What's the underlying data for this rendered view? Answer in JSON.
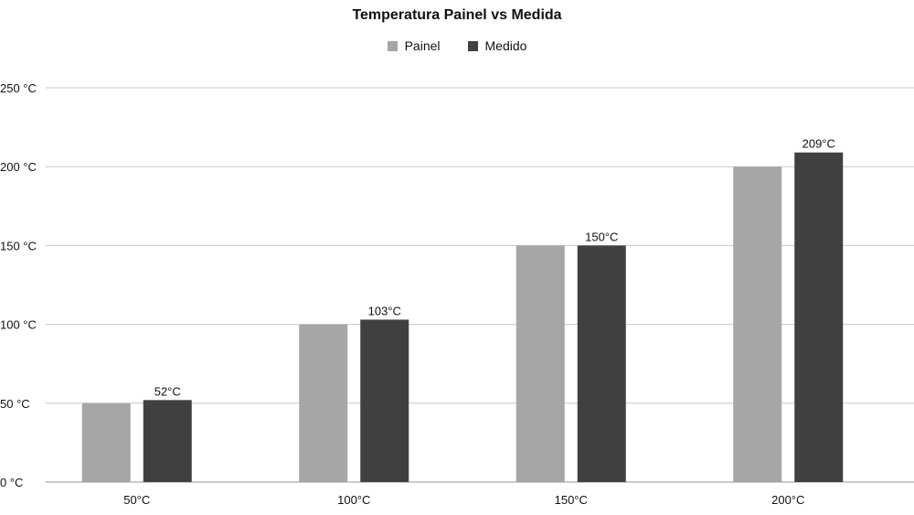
{
  "chart_data": {
    "type": "bar",
    "title": "Temperatura Painel vs Medida",
    "categories": [
      "50°C",
      "100°C",
      "150°C",
      "200°C"
    ],
    "series": [
      {
        "name": "Painel",
        "values": [
          50,
          100,
          150,
          200
        ],
        "color": "#a6a6a6",
        "labels": [
          "",
          "",
          "",
          ""
        ]
      },
      {
        "name": "Medido",
        "values": [
          52,
          103,
          150,
          209
        ],
        "color": "#404040",
        "labels": [
          "52°C",
          "103°C",
          "150°C",
          "209°C"
        ]
      }
    ],
    "yticks": [
      "0 °C",
      "50 °C",
      "100 °C",
      "150 °C",
      "200 °C",
      "250 °C"
    ],
    "ylim": [
      0,
      250
    ],
    "grid": true,
    "legend_position": "top-center",
    "xlabel": "",
    "ylabel": ""
  }
}
